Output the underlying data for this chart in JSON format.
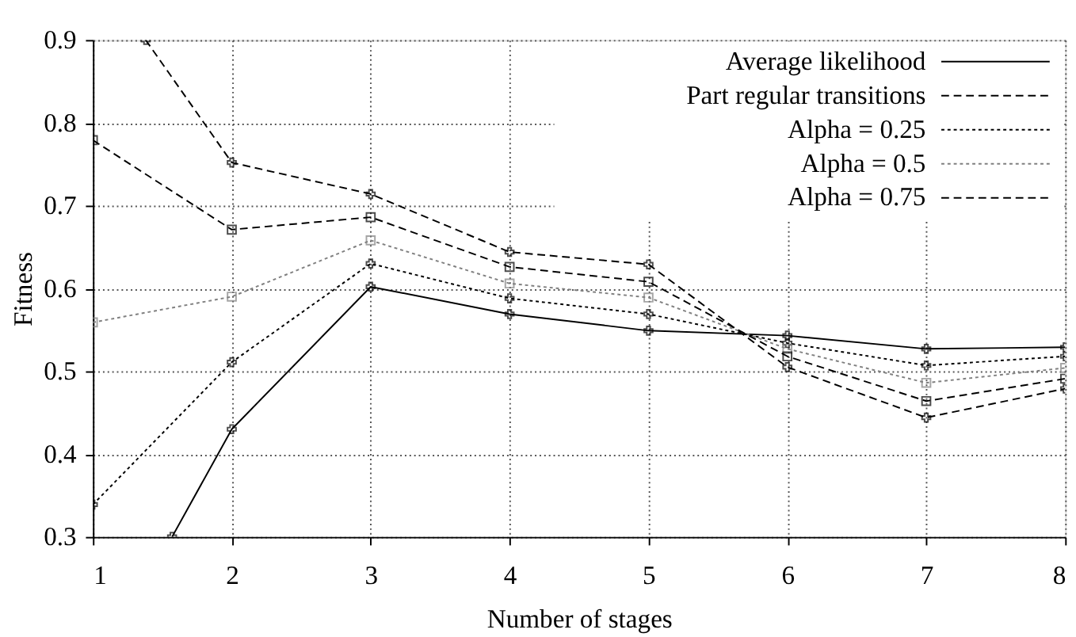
{
  "chart_data": {
    "type": "line",
    "xlabel": "Number of stages",
    "ylabel": "Fitness",
    "xlim": [
      1,
      8
    ],
    "xticks": [
      1,
      2,
      3,
      4,
      5,
      6,
      7,
      8
    ],
    "ylim": [
      0.3,
      0.9
    ],
    "yticks": [
      0.3,
      0.4,
      0.5,
      0.6,
      0.7,
      0.8,
      0.9
    ],
    "grid": true,
    "legend": "top right",
    "series": [
      {
        "name": "Average likelihood",
        "color": "#000000",
        "marker": "cross",
        "line_style": "solid",
        "x": [
          1.57,
          2,
          3,
          4,
          5,
          6,
          7,
          8
        ],
        "values": [
          0.3,
          0.43,
          0.602,
          0.569,
          0.549,
          0.543,
          0.527,
          0.529
        ]
      },
      {
        "name": "Part regular transitions",
        "color": "#000000",
        "marker": "cross",
        "line_style": "dashed",
        "x": [
          1.38,
          2,
          3,
          4,
          5,
          6,
          7,
          8
        ],
        "values": [
          0.9,
          0.752,
          0.714,
          0.644,
          0.629,
          0.505,
          0.444,
          0.479
        ]
      },
      {
        "name": "Alpha = 0.25",
        "color": "#000000",
        "marker": "cross",
        "line_style": "dotted",
        "x": [
          1,
          2,
          3,
          4,
          5,
          6,
          7,
          8
        ],
        "values": [
          0.339,
          0.511,
          0.63,
          0.588,
          0.569,
          0.534,
          0.507,
          0.518
        ]
      },
      {
        "name": "Alpha = 0.5",
        "color": "#808080",
        "marker": "square",
        "line_style": "dotted",
        "x": [
          1,
          2,
          3,
          4,
          5,
          6,
          7,
          8
        ],
        "values": [
          0.559,
          0.59,
          0.658,
          0.606,
          0.589,
          0.527,
          0.486,
          0.504
        ]
      },
      {
        "name": "Alpha = 0.75",
        "color": "#000000",
        "marker": "square",
        "line_style": "dashed",
        "x": [
          1,
          2,
          3,
          4,
          5,
          6,
          7,
          8
        ],
        "values": [
          0.779,
          0.671,
          0.686,
          0.626,
          0.608,
          0.518,
          0.464,
          0.491
        ]
      }
    ]
  }
}
